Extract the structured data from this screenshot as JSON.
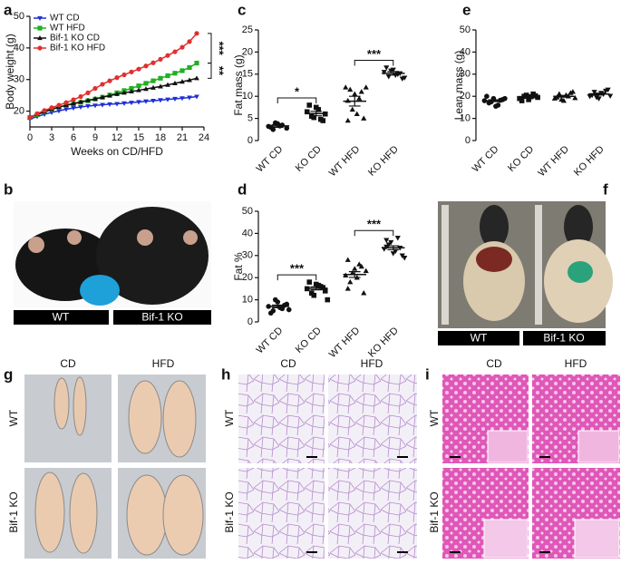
{
  "figure": {
    "panel_letters": [
      "a",
      "b",
      "c",
      "d",
      "e",
      "f",
      "g",
      "h",
      "i"
    ],
    "b": {
      "labels": [
        "WT",
        "Bif-1 KO"
      ]
    },
    "f": {
      "labels": [
        "WT",
        "Bif-1 KO"
      ]
    },
    "g": {
      "columns": [
        "CD",
        "HFD"
      ],
      "rows": [
        "WT",
        "Bif-1 KO"
      ]
    },
    "h": {
      "columns": [
        "CD",
        "HFD"
      ],
      "rows": [
        "WT",
        "Bif-1 KO"
      ]
    },
    "i": {
      "columns": [
        "CD",
        "HFD"
      ],
      "rows": [
        "WT",
        "Bif-1 KO"
      ]
    }
  },
  "chart_data": [
    {
      "type": "line",
      "xlabel": "Weeks on CD/HFD",
      "ylabel": "Body weight (g)",
      "x": [
        0,
        1,
        2,
        3,
        4,
        5,
        6,
        7,
        8,
        9,
        10,
        11,
        12,
        13,
        14,
        15,
        16,
        17,
        18,
        19,
        20,
        21,
        22,
        23
      ],
      "xlim": [
        0,
        24
      ],
      "xticks": [
        0,
        3,
        6,
        9,
        12,
        15,
        18,
        21,
        24
      ],
      "ylim": [
        15,
        50
      ],
      "yticks": [
        20,
        30,
        40,
        50
      ],
      "legend": "top-left",
      "annotations": [
        "***",
        "**"
      ],
      "series": [
        {
          "name": "WT CD",
          "color": "#1f2fd6",
          "marker": "triangle-down",
          "values": [
            17.5,
            18.3,
            19,
            19.6,
            20.1,
            20.6,
            21,
            21.3,
            21.6,
            21.8,
            22,
            22.2,
            22.3,
            22.5,
            22.7,
            22.9,
            23.1,
            23.3,
            23.5,
            23.7,
            23.9,
            24.1,
            24.3,
            24.6
          ]
        },
        {
          "name": "WT HFD",
          "color": "#22b022",
          "marker": "square",
          "values": [
            18,
            18.9,
            19.7,
            20.5,
            21.2,
            21.8,
            22.3,
            22.8,
            23.3,
            23.8,
            24.4,
            25.1,
            25.8,
            26.5,
            27.2,
            28,
            28.8,
            29.6,
            30.4,
            31.2,
            32,
            32.8,
            33.8,
            35.2
          ]
        },
        {
          "name": "Bif-1 KO CD",
          "color": "#111111",
          "marker": "triangle",
          "values": [
            18,
            19,
            19.8,
            20.6,
            21.3,
            21.9,
            22.4,
            22.9,
            23.4,
            23.9,
            24.4,
            24.9,
            25.4,
            25.8,
            26.2,
            26.6,
            27,
            27.4,
            27.8,
            28.3,
            28.8,
            29.3,
            29.8,
            30.4
          ]
        },
        {
          "name": "Bif-1 KO HFD",
          "color": "#e0302e",
          "marker": "circle",
          "values": [
            18,
            19.2,
            20.2,
            21.1,
            21.9,
            22.7,
            23.6,
            24.6,
            25.8,
            27.2,
            28.5,
            29.6,
            30.6,
            31.5,
            32.4,
            33.3,
            34.3,
            35.3,
            36.4,
            37.6,
            38.8,
            40.2,
            42,
            44.6
          ]
        }
      ]
    },
    {
      "type": "dot",
      "ylabel": "Fat mass (g)",
      "color": "#111111",
      "categories": [
        "WT CD",
        "KO CD",
        "WT HFD",
        "KO HFD"
      ],
      "markers": [
        "circle",
        "square",
        "triangle",
        "triangle-down"
      ],
      "ylim": [
        0,
        25
      ],
      "yticks": [
        0,
        5,
        10,
        15,
        20,
        25
      ],
      "points": [
        [
          3.2,
          2.5,
          3.8,
          3.5,
          2.8,
          3.0,
          4.0,
          3.3
        ],
        [
          6.5,
          5.5,
          7.5,
          4.8,
          6.0,
          8.0,
          5.2,
          7.0,
          4.5
        ],
        [
          12.0,
          11.5,
          10.5,
          9.5,
          5.0,
          4.5,
          7.0,
          6.0,
          11.0,
          12.0,
          9.0
        ],
        [
          15.5,
          14.5,
          16.0,
          15.0,
          14.0,
          16.5,
          15.8,
          14.8,
          15.2,
          14.2
        ]
      ],
      "means": [
        3.3,
        6.1,
        8.9,
        15.2
      ],
      "sems": [
        0.3,
        0.5,
        1.1,
        0.4
      ],
      "significance": [
        "*",
        "***"
      ]
    },
    {
      "type": "dot",
      "ylabel": "Fat %",
      "color": "#111111",
      "categories": [
        "WT CD",
        "KO CD",
        "WT HFD",
        "KO HFD"
      ],
      "markers": [
        "circle",
        "square",
        "triangle",
        "triangle-down"
      ],
      "ylim": [
        0,
        50
      ],
      "yticks": [
        0,
        10,
        20,
        30,
        40,
        50
      ],
      "points": [
        [
          7,
          5,
          9,
          6,
          8,
          4,
          10,
          6.5,
          7.5,
          5.5
        ],
        [
          15,
          13,
          17,
          16,
          14,
          18,
          12,
          16.5,
          15.5,
          10
        ],
        [
          21,
          18,
          24,
          26,
          13,
          15,
          22,
          20,
          25,
          23,
          28
        ],
        [
          33,
          35,
          31,
          38,
          30,
          34,
          36,
          32,
          33.5,
          29,
          37
        ]
      ],
      "means": [
        7,
        15.2,
        21.4,
        33.5
      ],
      "sems": [
        0.6,
        0.7,
        1.3,
        0.9
      ],
      "significance": [
        "***",
        "***"
      ]
    },
    {
      "type": "dot",
      "ylabel": "Lean mass (g)",
      "color": "#111111",
      "categories": [
        "WT CD",
        "KO CD",
        "WT HFD",
        "KO HFD"
      ],
      "markers": [
        "circle",
        "square",
        "triangle",
        "triangle-down"
      ],
      "ylim": [
        0,
        50
      ],
      "yticks": [
        0,
        10,
        20,
        30,
        40,
        50
      ],
      "points": [
        [
          18,
          17,
          19,
          16,
          18.5,
          20,
          17.5,
          15.5,
          18.2,
          19
        ],
        [
          19,
          20,
          18.5,
          21,
          19.5,
          18,
          20.5,
          19.8,
          20.2
        ],
        [
          19,
          21,
          18,
          20,
          22,
          19.5,
          18.5,
          20.5,
          21.5,
          19.2
        ],
        [
          20,
          22,
          19,
          21,
          23,
          20.5,
          19.5,
          21.5,
          22.5,
          20.2
        ]
      ],
      "means": [
        18,
        19.7,
        20,
        21
      ],
      "sems": [
        0.4,
        0.3,
        0.4,
        0.4
      ],
      "significance": []
    }
  ]
}
